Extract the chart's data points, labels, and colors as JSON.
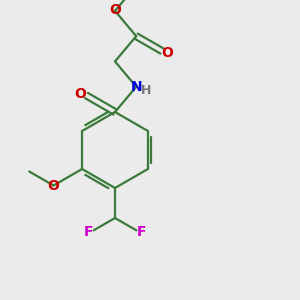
{
  "bg_color": "#ebebeb",
  "bond_color": "#3a7a3a",
  "bond_lw": 1.6,
  "atom_colors": {
    "O": "#cc0000",
    "N": "#0000dd",
    "F": "#cc00cc",
    "C": "#3a7a3a",
    "H": "#777777"
  },
  "font_size": 10,
  "font_size_small": 9
}
